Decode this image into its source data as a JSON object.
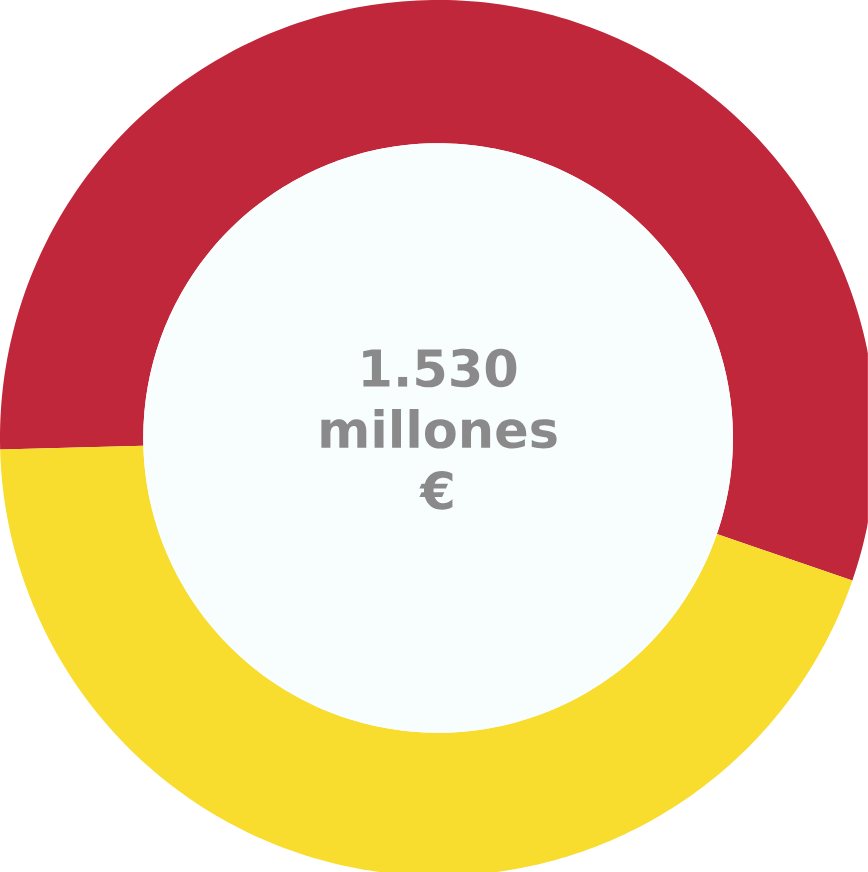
{
  "chart_data": {
    "type": "donut",
    "categories": [
      null,
      null
    ],
    "values": [
      55.7,
      44.3
    ],
    "colors": [
      "#c1273a",
      "#f8dd2e"
    ],
    "annotations": [
      "1.530 millones €"
    ]
  }
}
